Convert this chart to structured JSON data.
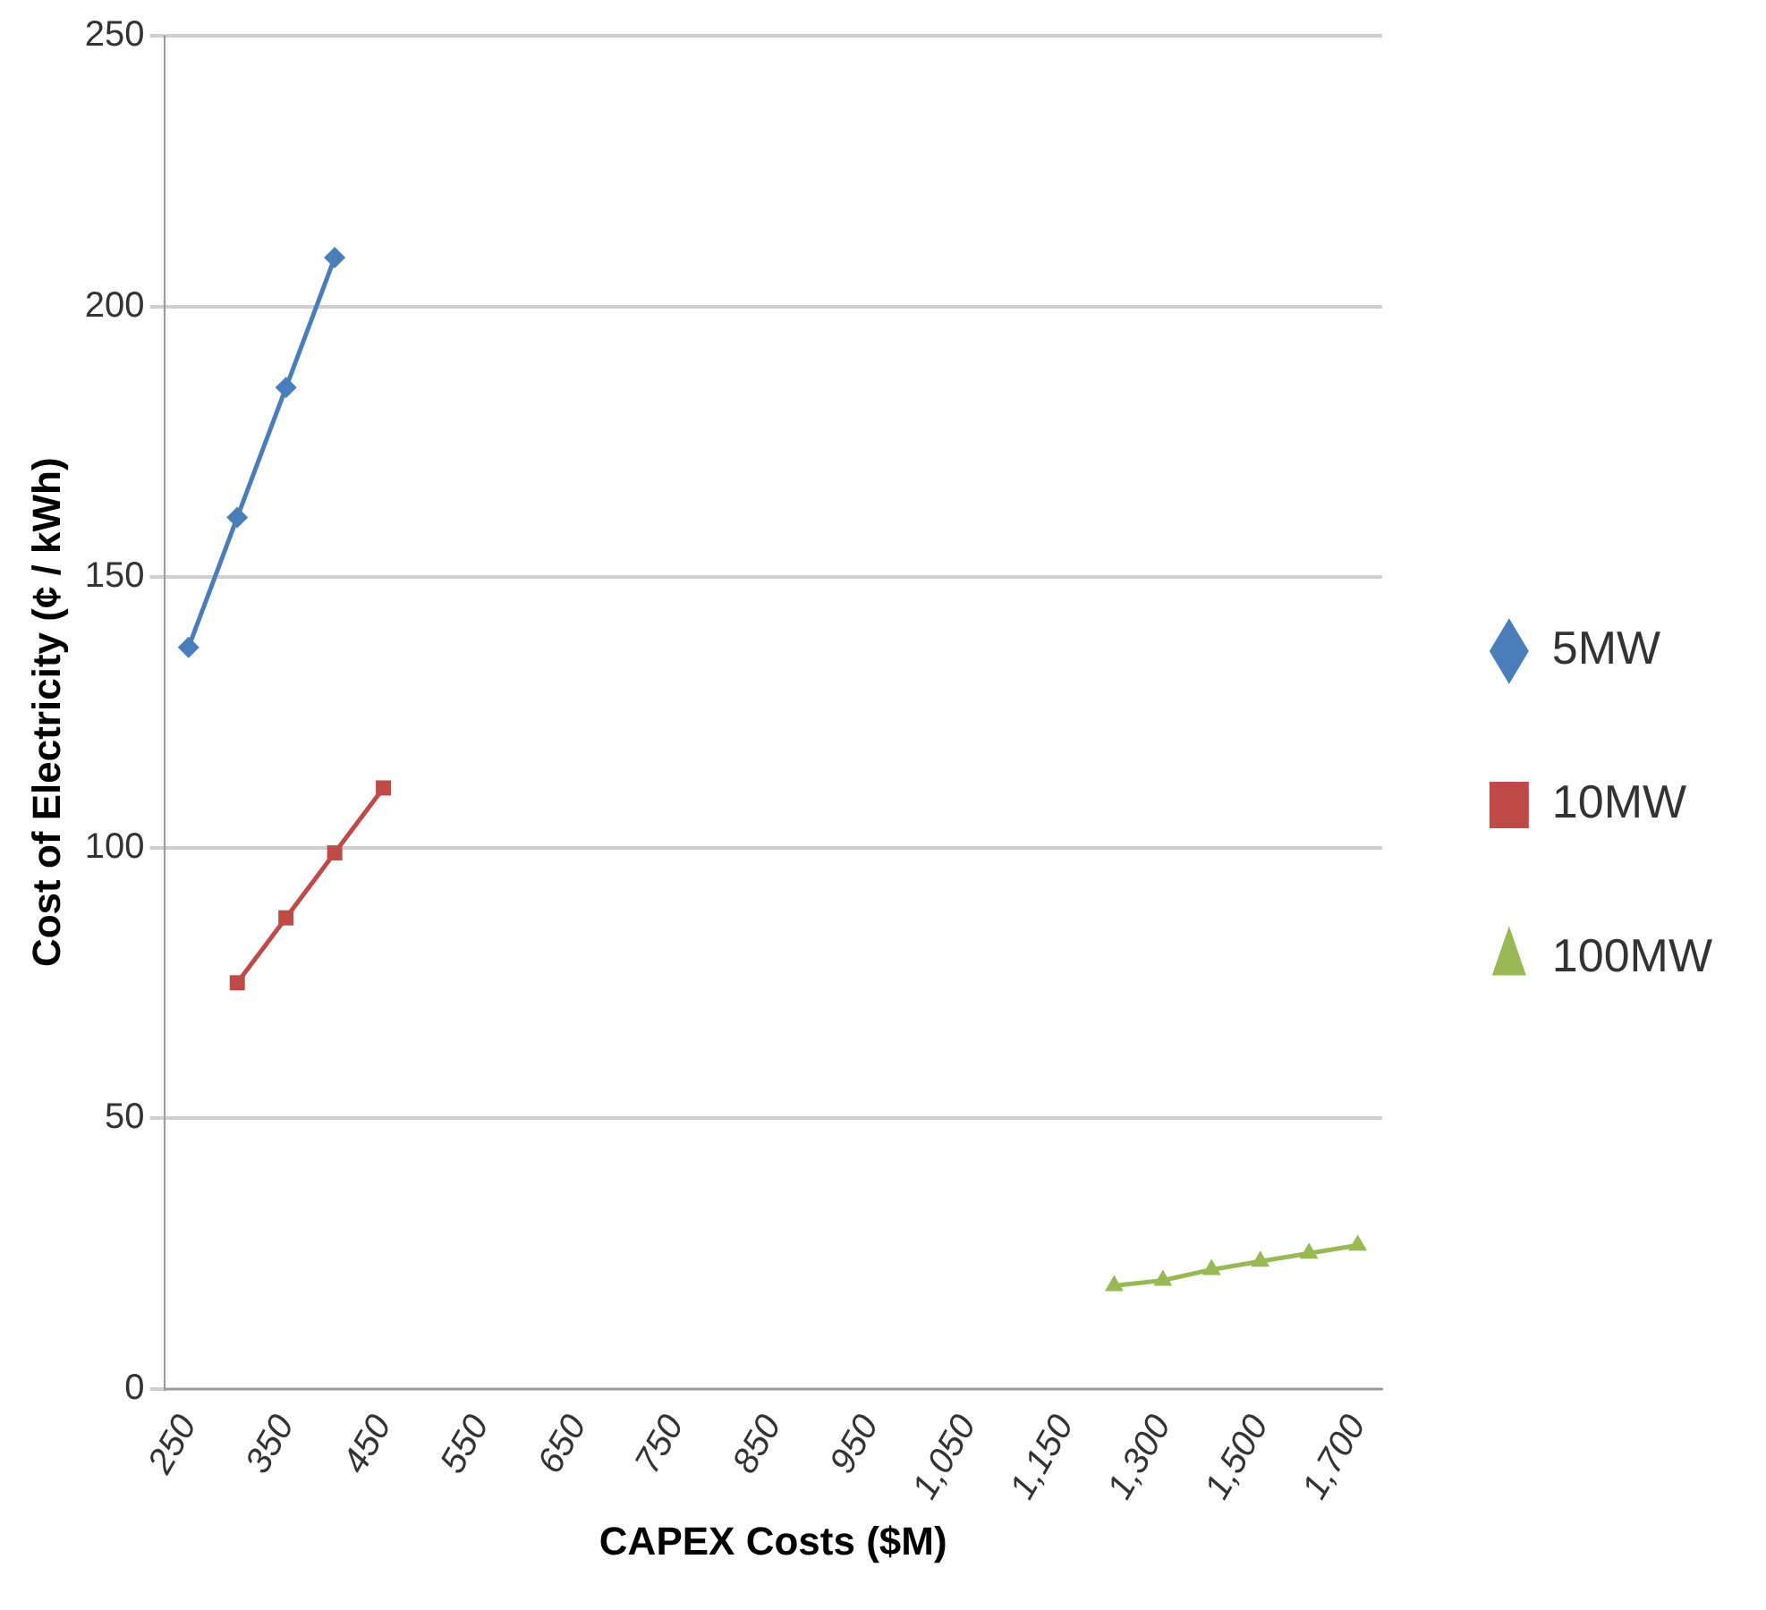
{
  "chart_data": {
    "type": "line",
    "xlabel": "CAPEX Costs ($M)",
    "ylabel": "Cost of Electricity (¢ / kWh)",
    "categories": [
      "250",
      null,
      "350",
      null,
      "450",
      null,
      "550",
      null,
      "650",
      null,
      "750",
      null,
      "850",
      null,
      "950",
      null,
      "1,050",
      null,
      "1,150",
      null,
      "1,300",
      null,
      "1,500",
      null,
      "1,700"
    ],
    "series": [
      {
        "name": "5MW",
        "color": "#4a7ebb",
        "marker": "diamond",
        "values": [
          137,
          161,
          185,
          209,
          null,
          null,
          null,
          null,
          null,
          null,
          null,
          null,
          null,
          null,
          null,
          null,
          null,
          null,
          null,
          null,
          null,
          null,
          null,
          null,
          null
        ]
      },
      {
        "name": "10MW",
        "color": "#be4b48",
        "marker": "square",
        "values": [
          null,
          75,
          87,
          99,
          111,
          null,
          null,
          null,
          null,
          null,
          null,
          null,
          null,
          null,
          null,
          null,
          null,
          null,
          null,
          null,
          null,
          null,
          null,
          null,
          null
        ]
      },
      {
        "name": "100MW",
        "color": "#98b954",
        "marker": "triangle",
        "values": [
          null,
          null,
          null,
          null,
          null,
          null,
          null,
          null,
          null,
          null,
          null,
          null,
          null,
          null,
          null,
          null,
          null,
          null,
          null,
          19,
          20,
          22,
          23.5,
          25,
          26.5
        ]
      }
    ],
    "ylim": [
      0,
      250
    ],
    "yticks": [
      0,
      50,
      100,
      150,
      200,
      250
    ],
    "grid": "y",
    "legend": "right",
    "line_style": "solid"
  }
}
